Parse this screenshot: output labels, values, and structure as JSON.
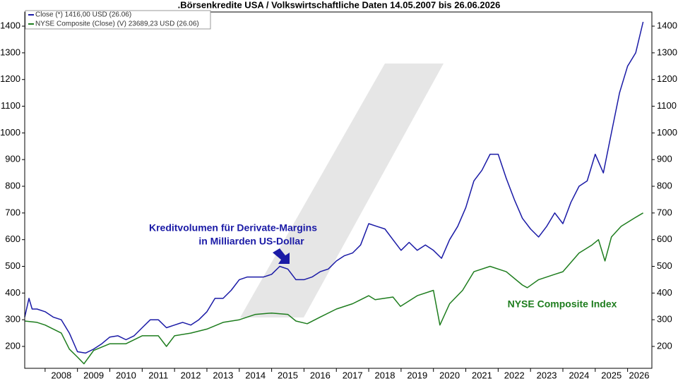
{
  "chart_data": {
    "type": "line",
    "title": ".Börsenkredite USA / Volkswirtschaftliche Daten 14.05.2007 bis 26.06.2026",
    "annotations": [
      "Kreditvolumen für Derivate-Margins",
      "in Milliarden US-Dollar",
      "NYSE Composite Index"
    ],
    "xlim": [
      2007.37,
      2026.75
    ],
    "xticks": [
      2008,
      2009,
      2010,
      2011,
      2012,
      2013,
      2014,
      2015,
      2016,
      2017,
      2018,
      2019,
      2020,
      2021,
      2022,
      2023,
      2024,
      2025,
      2026
    ],
    "ylim": [
      118,
      1453
    ],
    "yticks": [
      200,
      300,
      400,
      500,
      600,
      700,
      800,
      900,
      1000,
      1100,
      1200,
      1300,
      1400
    ],
    "series": [
      {
        "name": "Close (*) 1416,00 USD (26.06)",
        "color": "#1a1aa6",
        "x": [
          2007.37,
          2007.5,
          2007.6,
          2007.75,
          2008.0,
          2008.25,
          2008.5,
          2008.75,
          2009.0,
          2009.25,
          2009.5,
          2009.75,
          2010.0,
          2010.25,
          2010.5,
          2010.75,
          2011.0,
          2011.25,
          2011.5,
          2011.75,
          2012.0,
          2012.25,
          2012.5,
          2012.75,
          2013.0,
          2013.25,
          2013.5,
          2013.75,
          2014.0,
          2014.25,
          2014.5,
          2014.75,
          2015.0,
          2015.25,
          2015.5,
          2015.75,
          2016.0,
          2016.25,
          2016.5,
          2016.75,
          2017.0,
          2017.25,
          2017.5,
          2017.75,
          2018.0,
          2018.25,
          2018.5,
          2018.75,
          2019.0,
          2019.25,
          2019.5,
          2019.75,
          2020.0,
          2020.25,
          2020.5,
          2020.75,
          2021.0,
          2021.25,
          2021.5,
          2021.75,
          2022.0,
          2022.25,
          2022.5,
          2022.75,
          2023.0,
          2023.25,
          2023.5,
          2023.75,
          2024.0,
          2024.25,
          2024.5,
          2024.75,
          2025.0,
          2025.25,
          2025.5,
          2025.75,
          2026.0,
          2026.25,
          2026.48
        ],
        "values": [
          310,
          380,
          340,
          340,
          330,
          310,
          300,
          250,
          180,
          175,
          190,
          210,
          235,
          240,
          225,
          240,
          270,
          300,
          300,
          270,
          280,
          290,
          280,
          300,
          330,
          380,
          380,
          410,
          450,
          460,
          460,
          460,
          470,
          500,
          490,
          450,
          450,
          460,
          480,
          490,
          520,
          540,
          550,
          580,
          660,
          650,
          640,
          600,
          560,
          590,
          560,
          580,
          560,
          530,
          600,
          650,
          720,
          820,
          860,
          920,
          920,
          830,
          750,
          680,
          640,
          610,
          650,
          700,
          660,
          740,
          800,
          820,
          920,
          850,
          1000,
          1150,
          1250,
          1300,
          1416
        ]
      },
      {
        "name": "NYSE Composite (Close) (V) 23689,23 USD (26.06)",
        "color": "#1e7d1e",
        "x": [
          2007.37,
          2007.75,
          2008.0,
          2008.5,
          2008.75,
          2009.0,
          2009.2,
          2009.5,
          2010.0,
          2010.5,
          2011.0,
          2011.5,
          2011.75,
          2012.0,
          2012.5,
          2013.0,
          2013.5,
          2014.0,
          2014.5,
          2015.0,
          2015.5,
          2015.75,
          2016.1,
          2016.5,
          2017.0,
          2017.5,
          2018.0,
          2018.2,
          2018.75,
          2018.98,
          2019.5,
          2020.0,
          2020.2,
          2020.5,
          2020.9,
          2021.25,
          2021.75,
          2022.25,
          2022.75,
          2022.9,
          2023.25,
          2023.75,
          2024.0,
          2024.5,
          2024.9,
          2025.1,
          2025.3,
          2025.5,
          2025.8,
          2026.2,
          2026.48
        ],
        "values": [
          295,
          290,
          280,
          250,
          190,
          160,
          135,
          185,
          210,
          210,
          240,
          240,
          200,
          240,
          250,
          265,
          290,
          300,
          320,
          325,
          320,
          295,
          285,
          310,
          340,
          360,
          390,
          375,
          385,
          350,
          390,
          410,
          280,
          360,
          410,
          480,
          500,
          480,
          430,
          420,
          450,
          470,
          480,
          550,
          580,
          600,
          520,
          610,
          650,
          680,
          700
        ]
      }
    ]
  }
}
